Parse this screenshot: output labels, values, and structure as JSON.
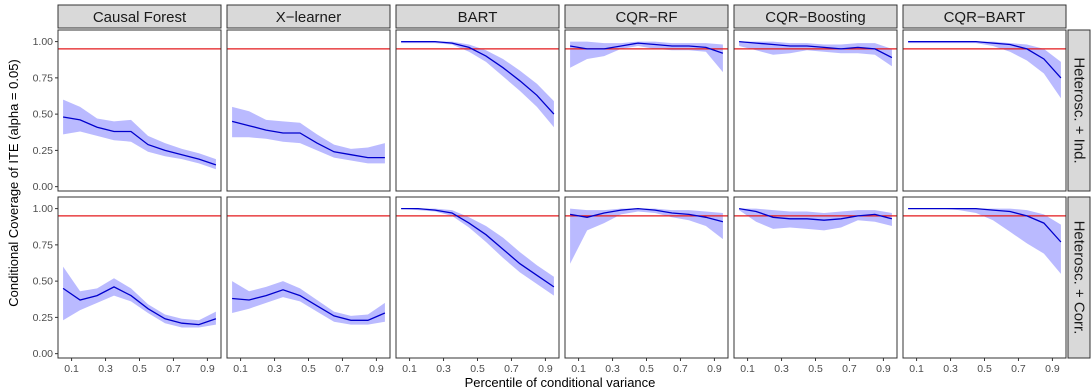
{
  "chart_data": {
    "type": "line",
    "xlabel": "Percentile of conditional variance",
    "ylabel": "Conditional Coverage of ITE (alpha = 0.05)",
    "x": [
      0.05,
      0.15,
      0.25,
      0.35,
      0.45,
      0.55,
      0.65,
      0.75,
      0.85,
      0.95
    ],
    "x_ticks": [
      "0.1",
      "0.3",
      "0.5",
      "0.7",
      "0.9"
    ],
    "x_tick_values": [
      0.1,
      0.3,
      0.5,
      0.7,
      0.9
    ],
    "xlim": [
      0.02,
      0.98
    ],
    "ylim": [
      -0.03,
      1.08
    ],
    "y_ticks": [
      "0.00",
      "0.25",
      "0.50",
      "0.75",
      "1.00"
    ],
    "y_tick_values": [
      0,
      0.25,
      0.5,
      0.75,
      1.0
    ],
    "reference_line": {
      "y": 0.95,
      "color": "#e41a1c"
    },
    "colors": {
      "line": "#0000cc",
      "band": "#b3b3ff",
      "strip": "#d9d9d9",
      "panel_border": "#333333"
    },
    "columns": [
      "Causal Forest",
      "X−learner",
      "BART",
      "CQR−RF",
      "CQR−Boosting",
      "CQR−BART"
    ],
    "rows": [
      "Heterosc. + Ind.",
      "Heterosc. + Corr."
    ],
    "panels": [
      [
        {
          "mean": [
            0.48,
            0.46,
            0.41,
            0.38,
            0.38,
            0.29,
            0.25,
            0.22,
            0.19,
            0.15
          ],
          "lower": [
            0.36,
            0.38,
            0.35,
            0.32,
            0.31,
            0.24,
            0.21,
            0.19,
            0.16,
            0.12
          ],
          "upper": [
            0.6,
            0.55,
            0.47,
            0.45,
            0.46,
            0.35,
            0.3,
            0.26,
            0.23,
            0.19
          ]
        },
        {
          "mean": [
            0.45,
            0.42,
            0.39,
            0.37,
            0.37,
            0.3,
            0.24,
            0.22,
            0.2,
            0.2
          ],
          "lower": [
            0.34,
            0.34,
            0.33,
            0.31,
            0.3,
            0.25,
            0.2,
            0.18,
            0.16,
            0.16
          ],
          "upper": [
            0.55,
            0.52,
            0.46,
            0.45,
            0.44,
            0.36,
            0.29,
            0.26,
            0.27,
            0.3
          ]
        },
        {
          "mean": [
            1.0,
            1.0,
            1.0,
            0.99,
            0.96,
            0.9,
            0.82,
            0.73,
            0.63,
            0.5
          ],
          "lower": [
            0.99,
            0.99,
            0.99,
            0.98,
            0.93,
            0.86,
            0.76,
            0.66,
            0.55,
            0.41
          ],
          "upper": [
            1.0,
            1.0,
            1.0,
            1.0,
            0.98,
            0.94,
            0.88,
            0.8,
            0.71,
            0.59
          ]
        },
        {
          "mean": [
            0.97,
            0.95,
            0.95,
            0.97,
            0.99,
            0.98,
            0.97,
            0.97,
            0.96,
            0.92
          ],
          "lower": [
            0.82,
            0.88,
            0.9,
            0.95,
            0.97,
            0.95,
            0.94,
            0.94,
            0.93,
            0.79
          ],
          "upper": [
            1.0,
            1.0,
            0.99,
            0.99,
            1.0,
            1.0,
            0.99,
            0.99,
            0.99,
            0.98
          ]
        },
        {
          "mean": [
            1.0,
            0.99,
            0.98,
            0.97,
            0.97,
            0.96,
            0.95,
            0.96,
            0.95,
            0.89
          ],
          "lower": [
            0.97,
            0.94,
            0.91,
            0.92,
            0.94,
            0.93,
            0.92,
            0.92,
            0.91,
            0.83
          ],
          "upper": [
            1.0,
            1.0,
            1.0,
            0.99,
            0.99,
            0.98,
            0.98,
            0.99,
            0.99,
            0.95
          ]
        },
        {
          "mean": [
            1.0,
            1.0,
            1.0,
            1.0,
            1.0,
            0.99,
            0.98,
            0.95,
            0.88,
            0.75
          ],
          "lower": [
            0.99,
            0.99,
            0.99,
            0.99,
            0.99,
            0.97,
            0.93,
            0.87,
            0.78,
            0.61
          ],
          "upper": [
            1.0,
            1.0,
            1.0,
            1.0,
            1.0,
            1.0,
            0.99,
            0.98,
            0.95,
            0.86
          ]
        }
      ],
      [
        {
          "mean": [
            0.45,
            0.37,
            0.4,
            0.46,
            0.4,
            0.31,
            0.24,
            0.21,
            0.2,
            0.24
          ],
          "lower": [
            0.23,
            0.3,
            0.35,
            0.4,
            0.36,
            0.28,
            0.21,
            0.18,
            0.18,
            0.2
          ],
          "upper": [
            0.6,
            0.43,
            0.45,
            0.52,
            0.45,
            0.34,
            0.27,
            0.24,
            0.23,
            0.29
          ]
        },
        {
          "mean": [
            0.38,
            0.37,
            0.4,
            0.44,
            0.4,
            0.33,
            0.26,
            0.23,
            0.23,
            0.28
          ],
          "lower": [
            0.28,
            0.31,
            0.35,
            0.39,
            0.36,
            0.29,
            0.22,
            0.2,
            0.2,
            0.22
          ],
          "upper": [
            0.5,
            0.43,
            0.46,
            0.5,
            0.45,
            0.37,
            0.29,
            0.26,
            0.27,
            0.35
          ]
        },
        {
          "mean": [
            1.0,
            1.0,
            0.99,
            0.97,
            0.9,
            0.82,
            0.72,
            0.62,
            0.54,
            0.46
          ],
          "lower": [
            1.0,
            0.99,
            0.98,
            0.95,
            0.87,
            0.77,
            0.66,
            0.56,
            0.48,
            0.4
          ],
          "upper": [
            1.0,
            1.0,
            1.0,
            0.99,
            0.94,
            0.88,
            0.8,
            0.7,
            0.61,
            0.53
          ]
        },
        {
          "mean": [
            0.96,
            0.94,
            0.97,
            0.99,
            1.0,
            0.99,
            0.97,
            0.96,
            0.94,
            0.91
          ],
          "lower": [
            0.62,
            0.85,
            0.9,
            0.96,
            0.98,
            0.97,
            0.94,
            0.92,
            0.88,
            0.79
          ],
          "upper": [
            1.0,
            0.99,
            0.99,
            1.0,
            1.0,
            1.0,
            0.99,
            0.99,
            0.98,
            0.97
          ]
        },
        {
          "mean": [
            1.0,
            0.98,
            0.94,
            0.93,
            0.93,
            0.92,
            0.93,
            0.95,
            0.96,
            0.93
          ],
          "lower": [
            0.99,
            0.91,
            0.86,
            0.87,
            0.86,
            0.85,
            0.87,
            0.92,
            0.91,
            0.88
          ],
          "upper": [
            1.0,
            1.0,
            0.99,
            0.98,
            0.98,
            0.97,
            0.98,
            0.99,
            0.99,
            0.97
          ]
        },
        {
          "mean": [
            1.0,
            1.0,
            1.0,
            1.0,
            1.0,
            0.99,
            0.98,
            0.95,
            0.9,
            0.77
          ],
          "lower": [
            1.0,
            1.0,
            1.0,
            0.99,
            0.97,
            0.92,
            0.84,
            0.76,
            0.69,
            0.55
          ],
          "upper": [
            1.0,
            1.0,
            1.0,
            1.0,
            1.0,
            1.0,
            1.0,
            0.99,
            0.96,
            0.89
          ]
        }
      ]
    ]
  }
}
